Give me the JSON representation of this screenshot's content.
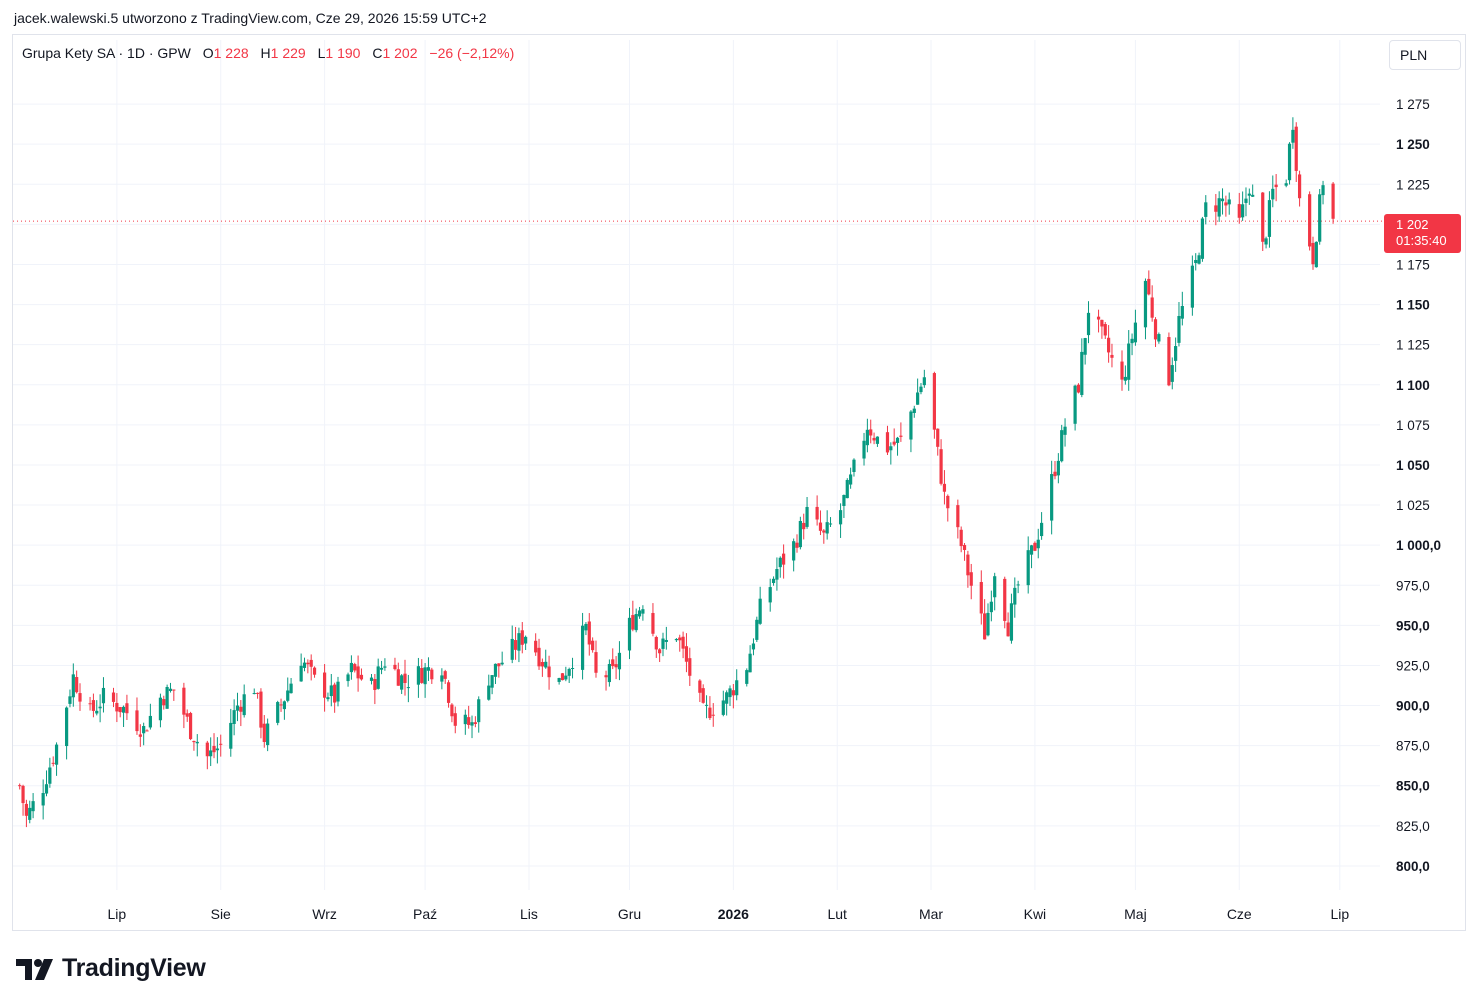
{
  "header": {
    "text": "jacek.walewski.5 utworzono z TradingView.com, Cze 29, 2026 15:59 UTC+2"
  },
  "legend": {
    "symbol": "Grupa Kety SA · 1D · GPW",
    "o_label": "O",
    "o_value": "1 228",
    "h_label": "H",
    "h_value": "1 229",
    "l_label": "L",
    "l_value": "1 190",
    "c_label": "C",
    "c_value": "1 202",
    "change": "−26 (−2,12%)"
  },
  "currency": "PLN",
  "last_price": {
    "value": "1 202",
    "countdown": "01:35:40"
  },
  "brand": {
    "name": "TradingView",
    "icon": "tradingview-logo-icon"
  },
  "colors": {
    "up": "#089981",
    "down": "#f23645",
    "grid": "#f0f3fa",
    "text": "#131722"
  },
  "chart_data": {
    "type": "candlestick",
    "title": "Grupa Kety SA · 1D · GPW",
    "ylim": [
      785,
      1295
    ],
    "y_ticks": [
      {
        "value": 800,
        "label": "800,0",
        "bold": true
      },
      {
        "value": 825,
        "label": "825,0",
        "bold": false
      },
      {
        "value": 850,
        "label": "850,0",
        "bold": true
      },
      {
        "value": 875,
        "label": "875,0",
        "bold": false
      },
      {
        "value": 900,
        "label": "900,0",
        "bold": true
      },
      {
        "value": 925,
        "label": "925,0",
        "bold": false
      },
      {
        "value": 950,
        "label": "950,0",
        "bold": true
      },
      {
        "value": 975,
        "label": "975,0",
        "bold": false
      },
      {
        "value": 1000,
        "label": "1 000,0",
        "bold": true
      },
      {
        "value": 1025,
        "label": "1 025",
        "bold": false
      },
      {
        "value": 1050,
        "label": "1 050",
        "bold": true
      },
      {
        "value": 1075,
        "label": "1 075",
        "bold": false
      },
      {
        "value": 1100,
        "label": "1 100",
        "bold": true
      },
      {
        "value": 1125,
        "label": "1 125",
        "bold": false
      },
      {
        "value": 1150,
        "label": "1 150",
        "bold": true
      },
      {
        "value": 1175,
        "label": "1 175",
        "bold": false
      },
      {
        "value": 1225,
        "label": "1 225",
        "bold": false
      },
      {
        "value": 1250,
        "label": "1 250",
        "bold": true
      },
      {
        "value": 1275,
        "label": "1 275",
        "bold": false
      }
    ],
    "x_ticks": [
      {
        "label": "Lip",
        "date": "2025-07-01",
        "bold": false
      },
      {
        "label": "Sie",
        "date": "2025-08-01",
        "bold": false
      },
      {
        "label": "Wrz",
        "date": "2025-09-01",
        "bold": false
      },
      {
        "label": "Paź",
        "date": "2025-10-01",
        "bold": false
      },
      {
        "label": "Lis",
        "date": "2025-11-01",
        "bold": false
      },
      {
        "label": "Gru",
        "date": "2025-12-01",
        "bold": false
      },
      {
        "label": "2026",
        "date": "2026-01-01",
        "bold": true
      },
      {
        "label": "Lut",
        "date": "2026-02-01",
        "bold": false
      },
      {
        "label": "Mar",
        "date": "2026-03-01",
        "bold": false
      },
      {
        "label": "Kwi",
        "date": "2026-04-01",
        "bold": false
      },
      {
        "label": "Maj",
        "date": "2026-05-01",
        "bold": false
      },
      {
        "label": "Cze",
        "date": "2026-06-01",
        "bold": false
      },
      {
        "label": "Lip",
        "date": "2026-07-01",
        "bold": false
      }
    ],
    "x_range": [
      "2025-05-31",
      "2026-07-13"
    ],
    "last_price": 1202,
    "closes": [
      {
        "date": "2025-06-02",
        "close": 850
      },
      {
        "date": "2025-06-04",
        "close": 830
      },
      {
        "date": "2025-06-09",
        "close": 850
      },
      {
        "date": "2025-06-13",
        "close": 875
      },
      {
        "date": "2025-06-18",
        "close": 918
      },
      {
        "date": "2025-06-23",
        "close": 895
      },
      {
        "date": "2025-06-27",
        "close": 905
      },
      {
        "date": "2025-07-03",
        "close": 898
      },
      {
        "date": "2025-07-09",
        "close": 885
      },
      {
        "date": "2025-07-14",
        "close": 905
      },
      {
        "date": "2025-07-18",
        "close": 910
      },
      {
        "date": "2025-07-23",
        "close": 885
      },
      {
        "date": "2025-07-28",
        "close": 868
      },
      {
        "date": "2025-08-01",
        "close": 875
      },
      {
        "date": "2025-08-06",
        "close": 900
      },
      {
        "date": "2025-08-11",
        "close": 912
      },
      {
        "date": "2025-08-14",
        "close": 880
      },
      {
        "date": "2025-08-20",
        "close": 905
      },
      {
        "date": "2025-08-25",
        "close": 930
      },
      {
        "date": "2025-08-29",
        "close": 915
      },
      {
        "date": "2025-09-04",
        "close": 905
      },
      {
        "date": "2025-09-09",
        "close": 922
      },
      {
        "date": "2025-09-15",
        "close": 912
      },
      {
        "date": "2025-09-19",
        "close": 928
      },
      {
        "date": "2025-09-25",
        "close": 915
      },
      {
        "date": "2025-10-01",
        "close": 922
      },
      {
        "date": "2025-10-06",
        "close": 925
      },
      {
        "date": "2025-10-10",
        "close": 890
      },
      {
        "date": "2025-10-15",
        "close": 888
      },
      {
        "date": "2025-10-20",
        "close": 918
      },
      {
        "date": "2025-10-27",
        "close": 935
      },
      {
        "date": "2025-10-31",
        "close": 945
      },
      {
        "date": "2025-11-05",
        "close": 928
      },
      {
        "date": "2025-11-10",
        "close": 915
      },
      {
        "date": "2025-11-14",
        "close": 930
      },
      {
        "date": "2025-11-18",
        "close": 948
      },
      {
        "date": "2025-11-21",
        "close": 918
      },
      {
        "date": "2025-11-26",
        "close": 920
      },
      {
        "date": "2025-12-01",
        "close": 950
      },
      {
        "date": "2025-12-05",
        "close": 965
      },
      {
        "date": "2025-12-10",
        "close": 935
      },
      {
        "date": "2025-12-15",
        "close": 945
      },
      {
        "date": "2025-12-19",
        "close": 920
      },
      {
        "date": "2025-12-23",
        "close": 895
      },
      {
        "date": "2025-12-30",
        "close": 905
      },
      {
        "date": "2026-01-05",
        "close": 925
      },
      {
        "date": "2026-01-09",
        "close": 960
      },
      {
        "date": "2026-01-14",
        "close": 985
      },
      {
        "date": "2026-01-19",
        "close": 1000
      },
      {
        "date": "2026-01-23",
        "close": 1020
      },
      {
        "date": "2026-01-28",
        "close": 1005
      },
      {
        "date": "2026-02-02",
        "close": 1022
      },
      {
        "date": "2026-02-05",
        "close": 1040
      },
      {
        "date": "2026-02-10",
        "close": 1075
      },
      {
        "date": "2026-02-15",
        "close": 1060
      },
      {
        "date": "2026-02-20",
        "close": 1065
      },
      {
        "date": "2026-02-25",
        "close": 1095
      },
      {
        "date": "2026-02-27",
        "close": 1105
      },
      {
        "date": "2026-03-02",
        "close": 1070
      },
      {
        "date": "2026-03-05",
        "close": 1030
      },
      {
        "date": "2026-03-10",
        "close": 1000
      },
      {
        "date": "2026-03-13",
        "close": 975
      },
      {
        "date": "2026-03-17",
        "close": 945
      },
      {
        "date": "2026-03-20",
        "close": 985
      },
      {
        "date": "2026-03-24",
        "close": 950
      },
      {
        "date": "2026-03-27",
        "close": 975
      },
      {
        "date": "2026-04-01",
        "close": 1000
      },
      {
        "date": "2026-04-06",
        "close": 1040
      },
      {
        "date": "2026-04-10",
        "close": 1075
      },
      {
        "date": "2026-04-14",
        "close": 1100
      },
      {
        "date": "2026-04-17",
        "close": 1148
      },
      {
        "date": "2026-04-22",
        "close": 1125
      },
      {
        "date": "2026-04-27",
        "close": 1100
      },
      {
        "date": "2026-04-30",
        "close": 1130
      },
      {
        "date": "2026-05-04",
        "close": 1165
      },
      {
        "date": "2026-05-08",
        "close": 1125
      },
      {
        "date": "2026-05-11",
        "close": 1105
      },
      {
        "date": "2026-05-14",
        "close": 1140
      },
      {
        "date": "2026-05-19",
        "close": 1175
      },
      {
        "date": "2026-05-22",
        "close": 1210
      },
      {
        "date": "2026-05-27",
        "close": 1215
      },
      {
        "date": "2026-06-01",
        "close": 1200
      },
      {
        "date": "2026-06-04",
        "close": 1225
      },
      {
        "date": "2026-06-08",
        "close": 1185
      },
      {
        "date": "2026-06-11",
        "close": 1220
      },
      {
        "date": "2026-06-15",
        "close": 1230
      },
      {
        "date": "2026-06-17",
        "close": 1265
      },
      {
        "date": "2026-06-19",
        "close": 1215
      },
      {
        "date": "2026-06-23",
        "close": 1180
      },
      {
        "date": "2026-06-26",
        "close": 1228
      },
      {
        "date": "2026-06-29",
        "close": 1202
      }
    ]
  }
}
